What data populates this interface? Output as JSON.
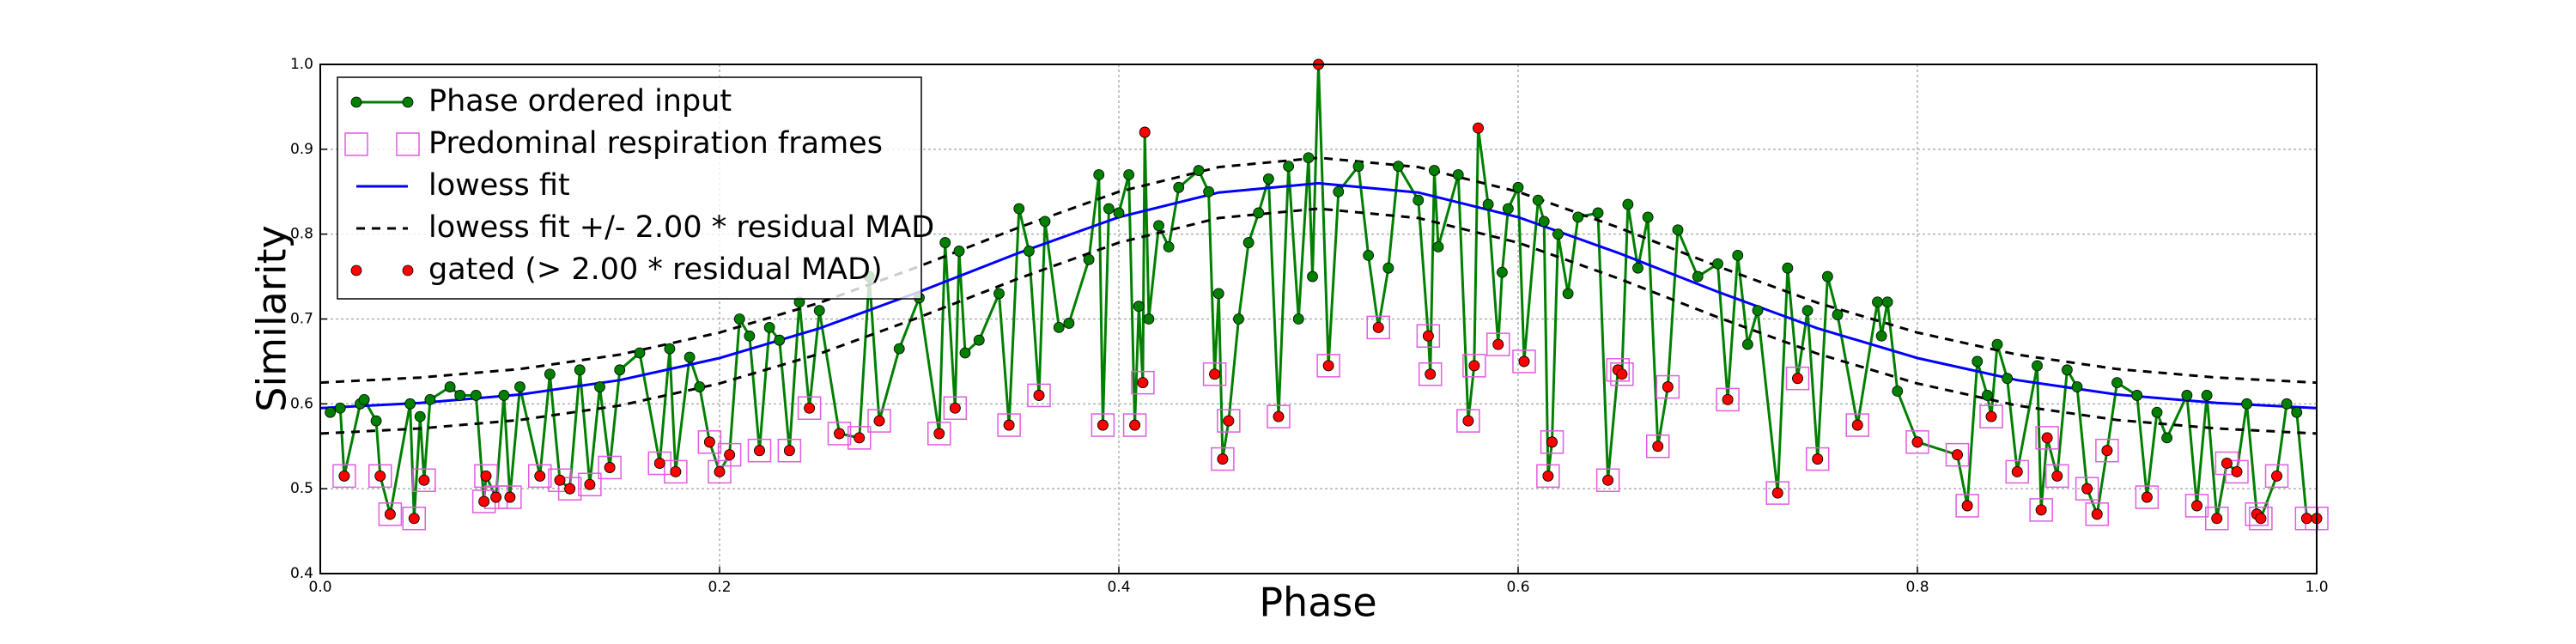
{
  "chart_data": {
    "type": "line",
    "xlabel": "Phase",
    "ylabel": "Similarity",
    "xlim": [
      0,
      1
    ],
    "ylim": [
      0.4,
      1.0
    ],
    "xticks": [
      {
        "value": 0,
        "label": "0.0"
      },
      0.2,
      0.4,
      0.6,
      0.8,
      {
        "value": 1,
        "label": "1.0"
      }
    ],
    "yticks": [
      0.4,
      0.5,
      0.6,
      0.7,
      0.8,
      0.9,
      {
        "value": 1,
        "label": "1.0"
      }
    ],
    "grid": true,
    "legend": "upper left",
    "input": {
      "name": "Phase ordered input",
      "color": "#007f00",
      "x": [
        0.005,
        0.01,
        0.012,
        0.02,
        0.022,
        0.028,
        0.03,
        0.035,
        0.045,
        0.047,
        0.05,
        0.052,
        0.055,
        0.065,
        0.07,
        0.078,
        0.082,
        0.083,
        0.088,
        0.092,
        0.095,
        0.1,
        0.11,
        0.115,
        0.12,
        0.125,
        0.13,
        0.135,
        0.14,
        0.145,
        0.15,
        0.16,
        0.17,
        0.175,
        0.178,
        0.185,
        0.19,
        0.195,
        0.2,
        0.205,
        0.21,
        0.215,
        0.22,
        0.225,
        0.23,
        0.235,
        0.24,
        0.245,
        0.25,
        0.26,
        0.27,
        0.275,
        0.28,
        0.29,
        0.3,
        0.31,
        0.313,
        0.318,
        0.32,
        0.323,
        0.33,
        0.34,
        0.345,
        0.35,
        0.355,
        0.36,
        0.363,
        0.37,
        0.375,
        0.385,
        0.39,
        0.392,
        0.395,
        0.4,
        0.405,
        0.408,
        0.41,
        0.412,
        0.413,
        0.415,
        0.42,
        0.425,
        0.43,
        0.44,
        0.445,
        0.448,
        0.45,
        0.452,
        0.455,
        0.46,
        0.465,
        0.47,
        0.475,
        0.48,
        0.485,
        0.49,
        0.495,
        0.497,
        0.5,
        0.505,
        0.51,
        0.52,
        0.525,
        0.53,
        0.535,
        0.54,
        0.55,
        0.555,
        0.556,
        0.558,
        0.56,
        0.57,
        0.575,
        0.578,
        0.58,
        0.585,
        0.59,
        0.592,
        0.595,
        0.6,
        0.603,
        0.61,
        0.613,
        0.615,
        0.617,
        0.62,
        0.625,
        0.63,
        0.64,
        0.645,
        0.65,
        0.652,
        0.655,
        0.66,
        0.665,
        0.67,
        0.675,
        0.68,
        0.69,
        0.7,
        0.705,
        0.71,
        0.715,
        0.72,
        0.73,
        0.735,
        0.74,
        0.745,
        0.75,
        0.755,
        0.76,
        0.77,
        0.78,
        0.782,
        0.785,
        0.79,
        0.8,
        0.82,
        0.825,
        0.83,
        0.835,
        0.837,
        0.84,
        0.845,
        0.85,
        0.86,
        0.862,
        0.865,
        0.87,
        0.875,
        0.88,
        0.885,
        0.89,
        0.895,
        0.9,
        0.91,
        0.915,
        0.92,
        0.925,
        0.935,
        0.94,
        0.945,
        0.95,
        0.955,
        0.96,
        0.965,
        0.97,
        0.972,
        0.98,
        0.985,
        0.99,
        0.995,
        1.0
      ],
      "values": [
        0.59,
        0.595,
        0.515,
        0.6,
        0.605,
        0.58,
        0.515,
        0.47,
        0.6,
        0.465,
        0.585,
        0.51,
        0.605,
        0.62,
        0.61,
        0.61,
        0.485,
        0.515,
        0.49,
        0.61,
        0.49,
        0.62,
        0.515,
        0.635,
        0.51,
        0.5,
        0.64,
        0.505,
        0.62,
        0.525,
        0.64,
        0.66,
        0.53,
        0.665,
        0.52,
        0.655,
        0.62,
        0.555,
        0.52,
        0.54,
        0.7,
        0.68,
        0.545,
        0.69,
        0.675,
        0.545,
        0.72,
        0.595,
        0.71,
        0.565,
        0.56,
        0.75,
        0.58,
        0.665,
        0.725,
        0.565,
        0.79,
        0.595,
        0.78,
        0.66,
        0.675,
        0.73,
        0.575,
        0.83,
        0.78,
        0.61,
        0.815,
        0.69,
        0.695,
        0.77,
        0.87,
        0.575,
        0.83,
        0.825,
        0.87,
        0.575,
        0.715,
        0.625,
        0.92,
        0.7,
        0.81,
        0.785,
        0.855,
        0.875,
        0.85,
        0.635,
        0.73,
        0.535,
        0.58,
        0.7,
        0.79,
        0.825,
        0.865,
        0.585,
        0.88,
        0.7,
        0.89,
        0.75,
        1.0,
        0.645,
        0.85,
        0.88,
        0.775,
        0.69,
        0.76,
        0.88,
        0.84,
        0.68,
        0.635,
        0.875,
        0.785,
        0.87,
        0.58,
        0.645,
        0.925,
        0.835,
        0.67,
        0.755,
        0.83,
        0.855,
        0.65,
        0.84,
        0.815,
        0.515,
        0.555,
        0.8,
        0.73,
        0.82,
        0.825,
        0.51,
        0.64,
        0.635,
        0.835,
        0.76,
        0.82,
        0.55,
        0.62,
        0.805,
        0.75,
        0.765,
        0.605,
        0.775,
        0.67,
        0.71,
        0.495,
        0.76,
        0.63,
        0.71,
        0.535,
        0.75,
        0.705,
        0.575,
        0.72,
        0.68,
        0.72,
        0.615,
        0.555,
        0.54,
        0.48,
        0.65,
        0.61,
        0.585,
        0.67,
        0.63,
        0.52,
        0.645,
        0.475,
        0.56,
        0.515,
        0.64,
        0.62,
        0.5,
        0.47,
        0.545,
        0.625,
        0.61,
        0.49,
        0.59,
        0.56,
        0.61,
        0.48,
        0.61,
        0.465,
        0.53,
        0.52,
        0.6,
        0.47,
        0.465,
        0.515,
        0.6,
        0.59,
        0.465,
        0.465
      ]
    },
    "frames": {
      "name": "Predominal respiration frames",
      "color": "#e05ce0",
      "x": [
        0.012,
        0.03,
        0.035,
        0.047,
        0.052,
        0.082,
        0.083,
        0.088,
        0.095,
        0.11,
        0.12,
        0.125,
        0.135,
        0.145,
        0.17,
        0.178,
        0.195,
        0.2,
        0.205,
        0.22,
        0.235,
        0.245,
        0.26,
        0.27,
        0.28,
        0.31,
        0.318,
        0.345,
        0.36,
        0.392,
        0.408,
        0.412,
        0.448,
        0.452,
        0.455,
        0.48,
        0.505,
        0.53,
        0.555,
        0.556,
        0.575,
        0.578,
        0.59,
        0.603,
        0.615,
        0.617,
        0.645,
        0.65,
        0.652,
        0.67,
        0.675,
        0.705,
        0.73,
        0.74,
        0.75,
        0.77,
        0.8,
        0.82,
        0.825,
        0.837,
        0.85,
        0.862,
        0.865,
        0.87,
        0.885,
        0.89,
        0.895,
        0.915,
        0.94,
        0.95,
        0.955,
        0.96,
        0.97,
        0.972,
        0.98,
        0.995,
        1.0
      ],
      "values": [
        0.515,
        0.515,
        0.47,
        0.465,
        0.51,
        0.485,
        0.515,
        0.49,
        0.49,
        0.515,
        0.51,
        0.5,
        0.505,
        0.525,
        0.53,
        0.52,
        0.555,
        0.52,
        0.54,
        0.545,
        0.545,
        0.595,
        0.565,
        0.56,
        0.58,
        0.565,
        0.595,
        0.575,
        0.61,
        0.575,
        0.575,
        0.625,
        0.635,
        0.535,
        0.58,
        0.585,
        0.645,
        0.69,
        0.68,
        0.635,
        0.58,
        0.645,
        0.67,
        0.65,
        0.515,
        0.555,
        0.51,
        0.64,
        0.635,
        0.55,
        0.62,
        0.605,
        0.495,
        0.63,
        0.535,
        0.575,
        0.555,
        0.54,
        0.48,
        0.585,
        0.52,
        0.475,
        0.56,
        0.515,
        0.5,
        0.47,
        0.545,
        0.49,
        0.48,
        0.465,
        0.53,
        0.52,
        0.47,
        0.465,
        0.515,
        0.465,
        0.465
      ]
    },
    "lowess": {
      "name": "lowess fit",
      "color": "#0000ff",
      "x": [
        0,
        0.05,
        0.1,
        0.15,
        0.2,
        0.25,
        0.3,
        0.35,
        0.4,
        0.45,
        0.5,
        0.55,
        0.6,
        0.65,
        0.7,
        0.75,
        0.8,
        0.85,
        0.9,
        0.95,
        1.0
      ],
      "values": [
        0.595,
        0.601,
        0.611,
        0.628,
        0.654,
        0.689,
        0.732,
        0.778,
        0.82,
        0.849,
        0.86,
        0.849,
        0.82,
        0.778,
        0.732,
        0.689,
        0.654,
        0.628,
        0.611,
        0.601,
        0.595
      ]
    },
    "band": {
      "name": "lowess fit +/- 2.00 * residual MAD",
      "color": "#000000",
      "x": [
        0,
        0.05,
        0.1,
        0.15,
        0.2,
        0.25,
        0.3,
        0.35,
        0.4,
        0.45,
        0.5,
        0.55,
        0.6,
        0.65,
        0.7,
        0.75,
        0.8,
        0.85,
        0.9,
        0.95,
        1.0
      ],
      "upper": [
        0.625,
        0.631,
        0.641,
        0.658,
        0.684,
        0.719,
        0.762,
        0.808,
        0.85,
        0.879,
        0.89,
        0.879,
        0.85,
        0.808,
        0.762,
        0.719,
        0.684,
        0.658,
        0.641,
        0.631,
        0.625
      ],
      "lower": [
        0.565,
        0.571,
        0.581,
        0.598,
        0.624,
        0.659,
        0.702,
        0.748,
        0.79,
        0.819,
        0.83,
        0.819,
        0.79,
        0.748,
        0.702,
        0.659,
        0.624,
        0.598,
        0.581,
        0.571,
        0.565
      ]
    },
    "gated": {
      "name": "gated (> 2.00 * residual MAD)",
      "color": "#ff0000",
      "x": [
        0.012,
        0.03,
        0.035,
        0.047,
        0.052,
        0.082,
        0.083,
        0.088,
        0.095,
        0.11,
        0.12,
        0.125,
        0.135,
        0.145,
        0.17,
        0.178,
        0.195,
        0.2,
        0.205,
        0.22,
        0.235,
        0.245,
        0.26,
        0.27,
        0.28,
        0.31,
        0.318,
        0.345,
        0.36,
        0.392,
        0.408,
        0.412,
        0.413,
        0.448,
        0.452,
        0.455,
        0.48,
        0.5,
        0.505,
        0.53,
        0.555,
        0.556,
        0.575,
        0.578,
        0.58,
        0.59,
        0.603,
        0.615,
        0.617,
        0.645,
        0.65,
        0.652,
        0.67,
        0.675,
        0.705,
        0.73,
        0.74,
        0.75,
        0.77,
        0.8,
        0.82,
        0.825,
        0.837,
        0.85,
        0.862,
        0.865,
        0.87,
        0.885,
        0.89,
        0.895,
        0.915,
        0.94,
        0.95,
        0.955,
        0.96,
        0.97,
        0.972,
        0.98,
        0.995,
        1.0
      ],
      "values": [
        0.515,
        0.515,
        0.47,
        0.465,
        0.51,
        0.485,
        0.515,
        0.49,
        0.49,
        0.515,
        0.51,
        0.5,
        0.505,
        0.525,
        0.53,
        0.52,
        0.555,
        0.52,
        0.54,
        0.545,
        0.545,
        0.595,
        0.565,
        0.56,
        0.58,
        0.565,
        0.595,
        0.575,
        0.61,
        0.575,
        0.575,
        0.625,
        0.92,
        0.635,
        0.535,
        0.58,
        0.585,
        1.0,
        0.645,
        0.69,
        0.68,
        0.635,
        0.58,
        0.645,
        0.925,
        0.67,
        0.65,
        0.515,
        0.555,
        0.51,
        0.64,
        0.635,
        0.55,
        0.62,
        0.605,
        0.495,
        0.63,
        0.535,
        0.575,
        0.555,
        0.54,
        0.48,
        0.585,
        0.52,
        0.475,
        0.56,
        0.515,
        0.5,
        0.47,
        0.545,
        0.49,
        0.48,
        0.465,
        0.53,
        0.52,
        0.47,
        0.465,
        0.515,
        0.465,
        0.465
      ]
    }
  }
}
